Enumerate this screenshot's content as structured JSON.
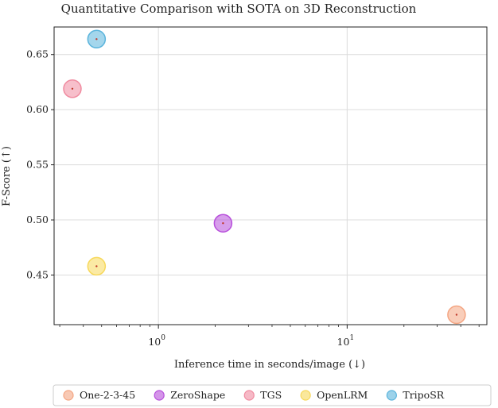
{
  "chart_data": {
    "type": "scatter",
    "title": "Quantitative Comparison with SOTA on 3D Reconstruction",
    "xlabel": "Inference time in seconds/image (↓)",
    "ylabel": "F-Score (↑)",
    "xscale": "log",
    "xlim": [
      0.28,
      55
    ],
    "ylim": [
      0.405,
      0.675
    ],
    "xticks": [
      {
        "value": 1,
        "base": "10",
        "exp": "0"
      },
      {
        "value": 10,
        "base": "10",
        "exp": "1"
      }
    ],
    "yticks": [
      {
        "value": 0.45,
        "label": "0.45"
      },
      {
        "value": 0.5,
        "label": "0.50"
      },
      {
        "value": 0.55,
        "label": "0.55"
      },
      {
        "value": 0.6,
        "label": "0.60"
      },
      {
        "value": 0.65,
        "label": "0.65"
      }
    ],
    "grid": true,
    "legend_position": "bottom",
    "series": [
      {
        "name": "One-2-3-45",
        "color": "#f4a582",
        "x": 38,
        "y": 0.414
      },
      {
        "name": "ZeroShape",
        "color": "#b74fdb",
        "x": 2.2,
        "y": 0.497
      },
      {
        "name": "TGS",
        "color": "#f08ba0",
        "x": 0.35,
        "y": 0.619
      },
      {
        "name": "OpenLRM",
        "color": "#f7d85a",
        "x": 0.47,
        "y": 0.458
      },
      {
        "name": "TripoSR",
        "color": "#5ab4dc",
        "x": 0.47,
        "y": 0.664
      }
    ]
  }
}
